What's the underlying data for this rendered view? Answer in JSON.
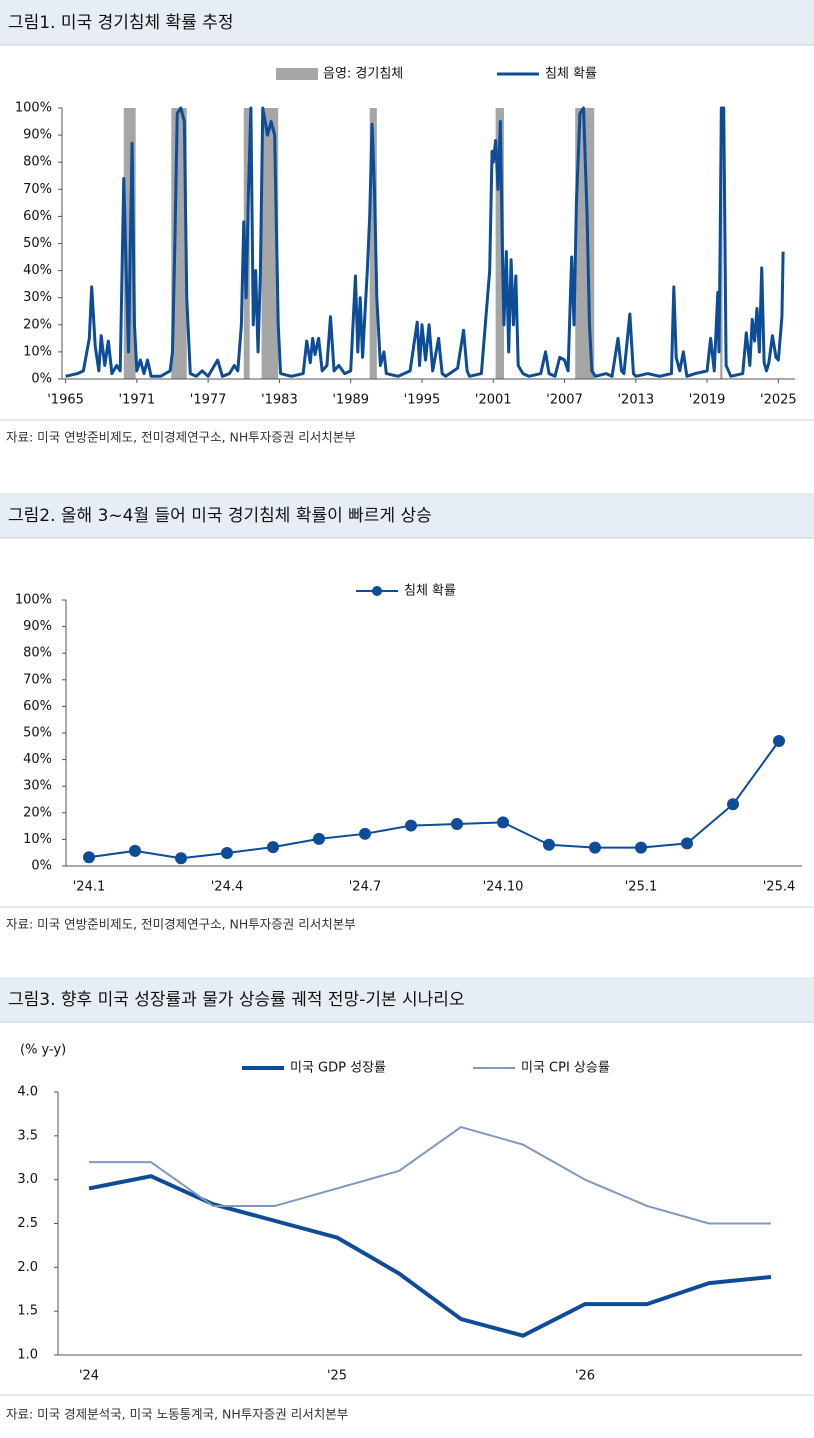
{
  "chart_data": [
    {
      "type": "line",
      "title": "그림1. 미국 경기침체 확률 추정",
      "source": "자료: 미국 연방준비제도, 전미경제연구소, NH투자증권 리서치본부",
      "shading": {
        "name": "음영: 경기침체",
        "color": "#a6a6a6",
        "periods": [
          [
            1969.9,
            1970.9
          ],
          [
            1973.9,
            1975.2
          ],
          [
            1980.0,
            1980.5
          ],
          [
            1981.5,
            1982.9
          ],
          [
            1990.6,
            1991.2
          ],
          [
            2001.2,
            2001.9
          ],
          [
            2007.9,
            2009.5
          ],
          [
            2020.1,
            2020.3
          ]
        ]
      },
      "x": [
        1965.0,
        1966.0,
        1966.5,
        1967.0,
        1967.2,
        1967.5,
        1967.8,
        1968.0,
        1968.3,
        1968.6,
        1968.9,
        1969.3,
        1969.6,
        1969.9,
        1970.1,
        1970.3,
        1970.6,
        1970.8,
        1971.0,
        1971.3,
        1971.6,
        1971.9,
        1972.2,
        1973.0,
        1973.8,
        1974.0,
        1974.2,
        1974.4,
        1974.7,
        1975.0,
        1975.2,
        1975.5,
        1976.0,
        1976.5,
        1977.0,
        1977.8,
        1978.2,
        1978.8,
        1979.2,
        1979.5,
        1979.8,
        1980.0,
        1980.2,
        1980.4,
        1980.6,
        1980.8,
        1981.0,
        1981.2,
        1981.4,
        1981.6,
        1981.8,
        1982.0,
        1982.3,
        1982.6,
        1982.9,
        1983.1,
        1984.0,
        1985.0,
        1985.3,
        1985.6,
        1985.8,
        1986.0,
        1986.3,
        1986.6,
        1987.0,
        1987.3,
        1987.6,
        1988.0,
        1988.5,
        1989.0,
        1989.4,
        1989.6,
        1989.8,
        1990.0,
        1990.4,
        1990.6,
        1990.8,
        1991.0,
        1991.2,
        1991.5,
        1991.8,
        1992.0,
        1993.0,
        1994.0,
        1994.6,
        1994.8,
        1995.0,
        1995.3,
        1995.6,
        1995.9,
        1996.4,
        1996.7,
        1997.0,
        1998.0,
        1998.5,
        1998.8,
        1999.0,
        2000.0,
        2000.7,
        2000.9,
        2001.0,
        2001.2,
        2001.4,
        2001.6,
        2001.8,
        2001.9,
        2002.1,
        2002.3,
        2002.5,
        2002.7,
        2002.9,
        2003.1,
        2003.5,
        2004.0,
        2005.0,
        2005.4,
        2005.7,
        2006.2,
        2006.6,
        2007.0,
        2007.3,
        2007.6,
        2007.8,
        2008.0,
        2008.3,
        2008.6,
        2008.9,
        2009.1,
        2009.3,
        2009.6,
        2010.5,
        2011.0,
        2011.5,
        2011.8,
        2012.0,
        2012.5,
        2012.8,
        2013.0,
        2014.0,
        2015.0,
        2016.0,
        2016.2,
        2016.4,
        2016.7,
        2017.0,
        2017.3,
        2018.0,
        2019.0,
        2019.3,
        2019.6,
        2019.9,
        2020.0,
        2020.1,
        2020.2,
        2020.4,
        2020.6,
        2021.0,
        2022.0,
        2022.3,
        2022.6,
        2022.8,
        2023.0,
        2023.2,
        2023.4,
        2023.6,
        2023.8,
        2024.0,
        2024.2,
        2024.5,
        2024.8,
        2025.0,
        2025.3,
        2025.4
      ],
      "series": [
        {
          "name": "침체 확률",
          "color": "#0d4d97",
          "values": [
            1,
            2,
            3,
            15,
            34,
            12,
            3,
            16,
            5,
            14,
            2,
            5,
            3,
            74,
            40,
            10,
            87,
            20,
            3,
            7,
            2,
            7,
            1,
            1,
            3,
            10,
            50,
            98,
            100,
            95,
            30,
            2,
            1,
            3,
            1,
            7,
            1,
            2,
            5,
            3,
            20,
            58,
            30,
            70,
            100,
            20,
            40,
            10,
            39,
            100,
            95,
            90,
            95,
            90,
            20,
            2,
            1,
            2,
            14,
            6,
            15,
            9,
            15,
            3,
            5,
            23,
            3,
            5,
            2,
            3,
            38,
            10,
            30,
            8,
            40,
            60,
            94,
            70,
            30,
            5,
            10,
            2,
            1,
            3,
            21,
            5,
            20,
            7,
            20,
            3,
            15,
            2,
            1,
            4,
            18,
            3,
            1,
            2,
            40,
            84,
            80,
            88,
            70,
            95,
            40,
            20,
            47,
            10,
            44,
            20,
            38,
            5,
            2,
            1,
            2,
            10,
            2,
            1,
            8,
            7,
            3,
            45,
            20,
            65,
            98,
            100,
            60,
            20,
            3,
            1,
            2,
            1,
            15,
            3,
            2,
            24,
            2,
            1,
            2,
            1,
            2,
            34,
            8,
            3,
            10,
            1,
            2,
            3,
            15,
            3,
            32,
            10,
            50,
            100,
            100,
            5,
            1,
            2,
            17,
            5,
            22,
            14,
            26,
            10,
            41,
            6,
            3,
            6,
            16,
            8,
            7,
            23,
            47
          ]
        }
      ],
      "xlim": [
        1964.7,
        2026.4
      ],
      "xticks": [
        {
          "value": 1965,
          "label": "'1965"
        },
        {
          "value": 1971,
          "label": "'1971"
        },
        {
          "value": 1977,
          "label": "'1977"
        },
        {
          "value": 1983,
          "label": "'1983"
        },
        {
          "value": 1989,
          "label": "'1989"
        },
        {
          "value": 1995,
          "label": "'1995"
        },
        {
          "value": 2001,
          "label": "'2001"
        },
        {
          "value": 2007,
          "label": "'2007"
        },
        {
          "value": 2013,
          "label": "'2013"
        },
        {
          "value": 2019,
          "label": "'2019"
        },
        {
          "value": 2025,
          "label": "'2025"
        }
      ],
      "ylim": [
        0,
        100
      ],
      "yticks": [
        {
          "value": 0,
          "label": "0%"
        },
        {
          "value": 10,
          "label": "10%"
        },
        {
          "value": 20,
          "label": "20%"
        },
        {
          "value": 30,
          "label": "30%"
        },
        {
          "value": 40,
          "label": "40%"
        },
        {
          "value": 50,
          "label": "50%"
        },
        {
          "value": 60,
          "label": "60%"
        },
        {
          "value": 70,
          "label": "70%"
        },
        {
          "value": 80,
          "label": "80%"
        },
        {
          "value": 90,
          "label": "90%"
        },
        {
          "value": 100,
          "label": "100%"
        }
      ]
    },
    {
      "type": "line",
      "title": "그림2. 올해 3~4월 들어 미국 경기침체 확률이 빠르게 상승",
      "source": "자료: 미국 연방준비제도, 전미경제연구소, NH투자증권 리서치본부",
      "markers": true,
      "categories": [
        "'24.1",
        null,
        null,
        "'24.4",
        null,
        null,
        "'24.7",
        null,
        null,
        "'24.10",
        null,
        null,
        "'25.1",
        null,
        null,
        "'25.4"
      ],
      "series": [
        {
          "name": "침체 확률",
          "color": "#0d4d97",
          "values": [
            3.3,
            5.7,
            2.9,
            4.9,
            7.1,
            10.2,
            12.1,
            15.2,
            15.8,
            16.4,
            8.0,
            6.9,
            6.9,
            8.5,
            23.2,
            47.0
          ]
        }
      ],
      "ylim": [
        0,
        100
      ],
      "yticks": [
        {
          "value": 0,
          "label": "0%"
        },
        {
          "value": 10,
          "label": "10%"
        },
        {
          "value": 20,
          "label": "20%"
        },
        {
          "value": 30,
          "label": "30%"
        },
        {
          "value": 40,
          "label": "40%"
        },
        {
          "value": 50,
          "label": "50%"
        },
        {
          "value": 60,
          "label": "60%"
        },
        {
          "value": 70,
          "label": "70%"
        },
        {
          "value": 80,
          "label": "80%"
        },
        {
          "value": 90,
          "label": "90%"
        },
        {
          "value": 100,
          "label": "100%"
        }
      ]
    },
    {
      "type": "line",
      "title": "그림3. 향후 미국 성장률과 물가 상승률 궤적 전망-기본 시나리오",
      "source": "자료: 미국 경제분석국, 미국 노동통계국, NH투자증권 리서치본부",
      "y_label": "(% y-y)",
      "categories": [
        "'24",
        null,
        null,
        null,
        "'25",
        null,
        null,
        null,
        "'26",
        null,
        null,
        null
      ],
      "series": [
        {
          "name": "미국 GDP 성장률",
          "color": "#0d4d97",
          "values": [
            2.9,
            3.04,
            2.72,
            2.53,
            2.34,
            1.93,
            1.41,
            1.22,
            1.58,
            1.58,
            1.82,
            1.89
          ]
        },
        {
          "name": "미국 CPI 상승률",
          "color": "#8197c0",
          "values": [
            3.2,
            3.2,
            2.7,
            2.7,
            2.9,
            3.1,
            3.6,
            3.4,
            3.0,
            2.7,
            2.5,
            2.5
          ]
        }
      ],
      "ylim": [
        1,
        4
      ],
      "yticks": [
        {
          "value": 1,
          "label": "1.0"
        },
        1.5,
        {
          "value": 2,
          "label": "2.0"
        },
        2.5,
        {
          "value": 3,
          "label": "3.0"
        },
        3.5,
        {
          "value": 4,
          "label": "4.0"
        }
      ]
    }
  ]
}
